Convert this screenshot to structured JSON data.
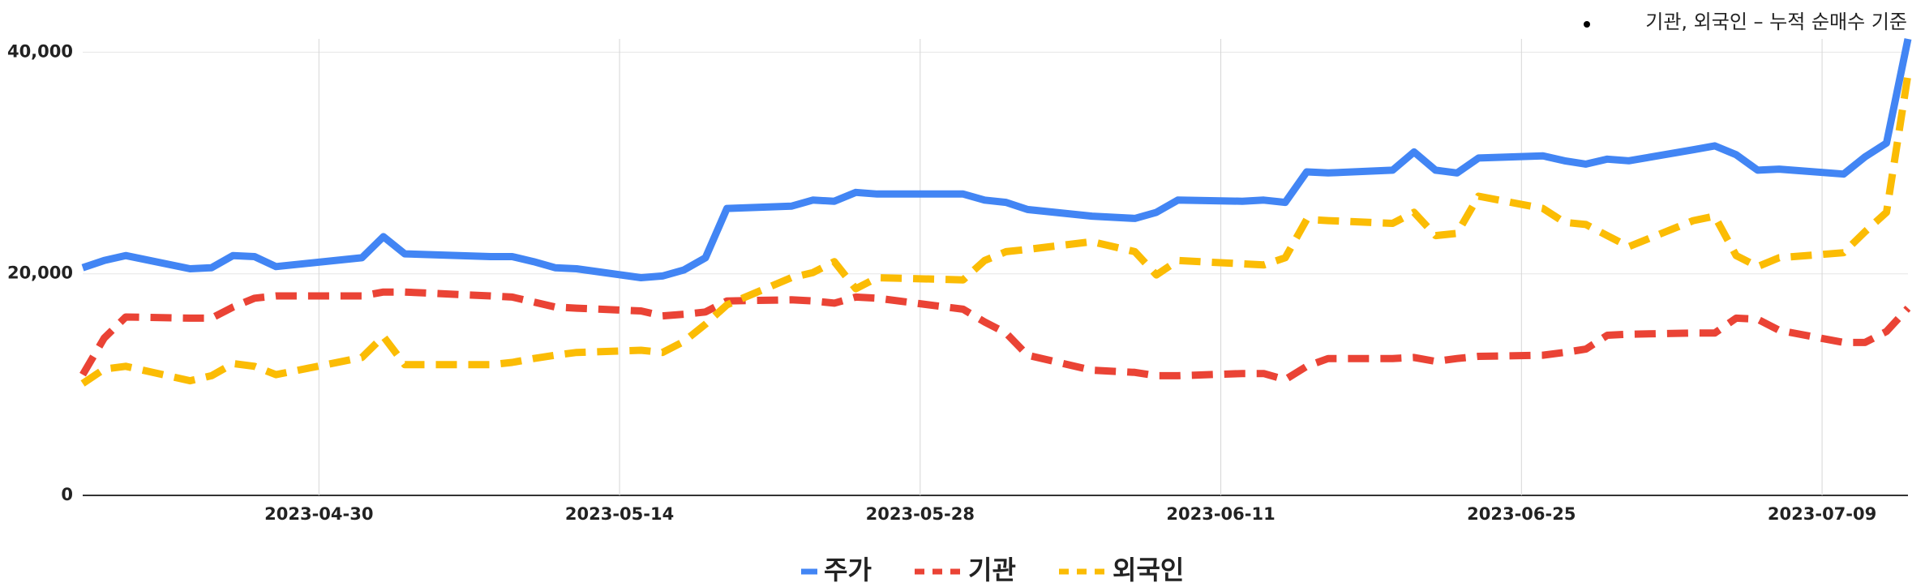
{
  "chart_data": {
    "type": "line",
    "annotation": "기관, 외국인 – 누적 순매수 기준",
    "x": [
      "2023-04-19",
      "2023-04-20",
      "2023-04-21",
      "2023-04-24",
      "2023-04-25",
      "2023-04-26",
      "2023-04-27",
      "2023-04-28",
      "2023-05-02",
      "2023-05-03",
      "2023-05-04",
      "2023-05-08",
      "2023-05-09",
      "2023-05-10",
      "2023-05-11",
      "2023-05-12",
      "2023-05-15",
      "2023-05-16",
      "2023-05-17",
      "2023-05-18",
      "2023-05-19",
      "2023-05-22",
      "2023-05-23",
      "2023-05-24",
      "2023-05-25",
      "2023-05-26",
      "2023-05-30",
      "2023-05-31",
      "2023-06-01",
      "2023-06-02",
      "2023-06-05",
      "2023-06-07",
      "2023-06-08",
      "2023-06-09",
      "2023-06-12",
      "2023-06-13",
      "2023-06-14",
      "2023-06-15",
      "2023-06-16",
      "2023-06-19",
      "2023-06-20",
      "2023-06-21",
      "2023-06-22",
      "2023-06-23",
      "2023-06-26",
      "2023-06-27",
      "2023-06-28",
      "2023-06-29",
      "2023-06-30",
      "2023-07-03",
      "2023-07-04",
      "2023-07-05",
      "2023-07-06",
      "2023-07-07",
      "2023-07-10",
      "2023-07-11",
      "2023-07-12",
      "2023-07-13"
    ],
    "series": [
      {
        "name": "주가",
        "color": "#4285f4",
        "dashed": false,
        "values": [
          20550,
          21200,
          21650,
          20450,
          20550,
          21650,
          21550,
          20650,
          21450,
          23350,
          21800,
          21550,
          21550,
          21100,
          20550,
          20450,
          19650,
          19800,
          20350,
          21450,
          25900,
          26100,
          26650,
          26550,
          27350,
          27200,
          27200,
          26650,
          26450,
          25800,
          25200,
          25000,
          25550,
          26650,
          26550,
          26650,
          26450,
          29200,
          29100,
          29350,
          31000,
          29350,
          29100,
          30450,
          30650,
          30200,
          29900,
          30350,
          30200,
          31200,
          31550,
          30750,
          29350,
          29450,
          29000,
          30550,
          31800,
          41200
        ]
      },
      {
        "name": "기관",
        "color": "#ea4335",
        "dashed": true,
        "values": [
          10900,
          14200,
          16100,
          16000,
          16000,
          17000,
          17800,
          18000,
          18000,
          18350,
          18350,
          18000,
          17900,
          17450,
          17000,
          16900,
          16650,
          16200,
          16350,
          16550,
          17550,
          17650,
          17550,
          17350,
          17900,
          17800,
          16800,
          15650,
          14650,
          12650,
          11300,
          11100,
          10800,
          10800,
          11000,
          11000,
          10450,
          11650,
          12350,
          12350,
          12450,
          12100,
          12350,
          12550,
          12650,
          12900,
          13200,
          14450,
          14550,
          14650,
          14650,
          16000,
          15900,
          14900,
          13800,
          13800,
          14800,
          16900
        ]
      },
      {
        "name": "외국인",
        "color": "#fbbc04",
        "dashed": true,
        "values": [
          10100,
          11400,
          11650,
          10350,
          10800,
          11900,
          11650,
          10900,
          12450,
          14350,
          11800,
          11800,
          12000,
          12350,
          12650,
          12900,
          13100,
          12900,
          13900,
          15450,
          17200,
          19650,
          20100,
          21100,
          18650,
          19650,
          19450,
          21200,
          22000,
          22200,
          22900,
          22000,
          19900,
          21200,
          20900,
          20800,
          21450,
          24900,
          24800,
          24550,
          25550,
          23450,
          23650,
          27000,
          25900,
          24650,
          24450,
          23450,
          22450,
          24800,
          25200,
          21650,
          20650,
          21450,
          21900,
          23800,
          25550,
          38000
        ]
      }
    ],
    "xlim": [
      "2023-04-19",
      "2023-07-13"
    ],
    "xticks": [
      "2023-04-30",
      "2023-05-14",
      "2023-05-28",
      "2023-06-11",
      "2023-06-25",
      "2023-07-09"
    ],
    "ylim": [
      0,
      41200
    ],
    "yticks": [
      0,
      {
        "value": 20000,
        "label": "20,000"
      },
      {
        "value": 40000,
        "label": "40,000"
      }
    ],
    "grid": true,
    "legend": "bottom"
  }
}
